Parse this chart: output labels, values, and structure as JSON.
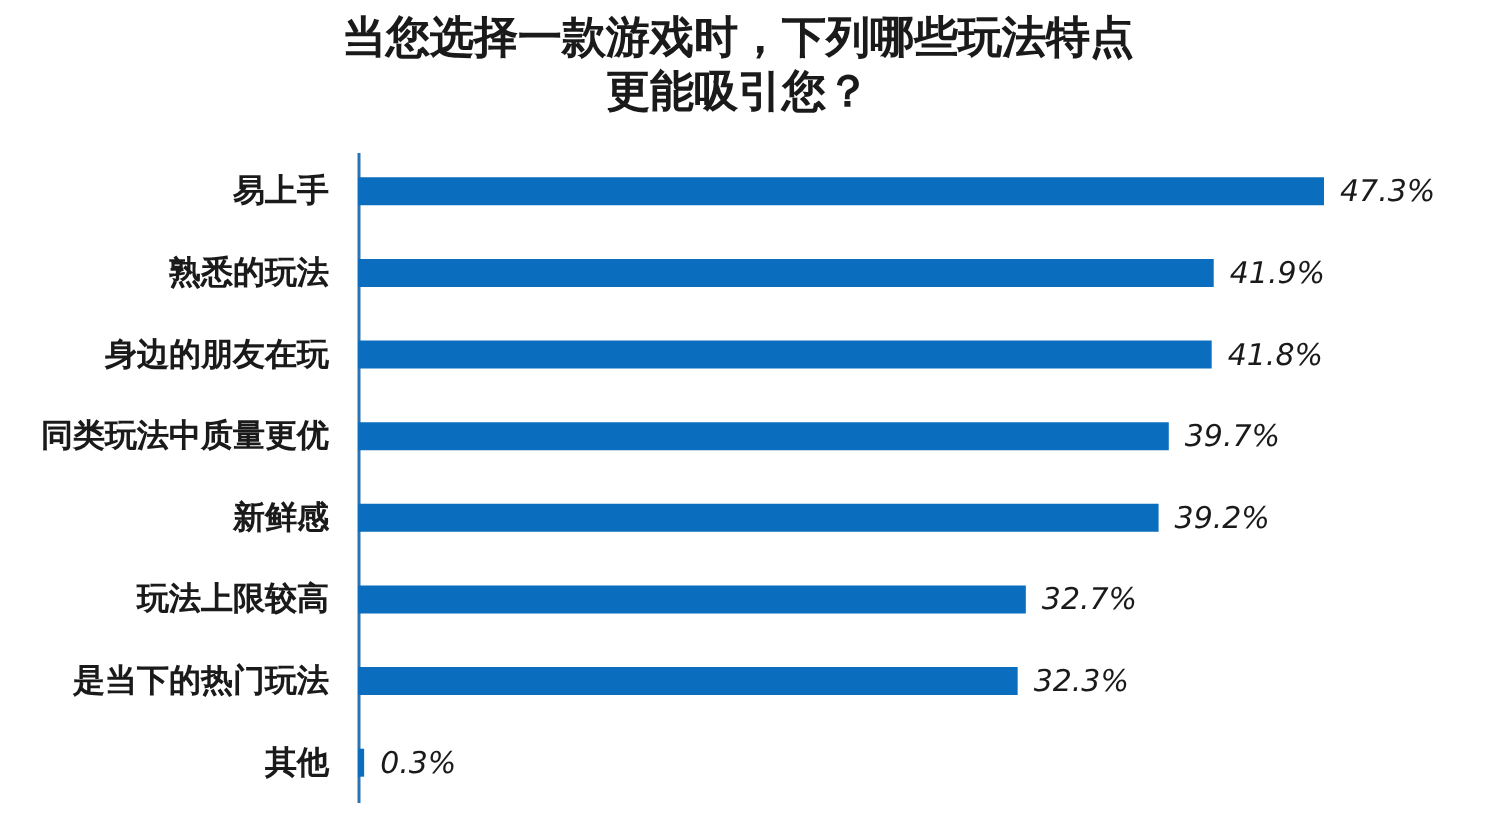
{
  "chart_data": {
    "type": "bar",
    "orientation": "horizontal",
    "title": "当您选择一款游戏时，下列哪些玩法特点更能吸引您？",
    "categories": [
      "易上手",
      "熟悉的玩法",
      "身边的朋友在玩",
      "同类玩法中质量更优",
      "新鲜感",
      "玩法上限较高",
      "是当下的热门玩法",
      "其他"
    ],
    "values": [
      47.3,
      41.9,
      41.8,
      39.7,
      39.2,
      32.7,
      32.3,
      0.3
    ],
    "value_labels": [
      "47.3%",
      "41.9%",
      "41.8%",
      "39.7%",
      "39.2%",
      "32.7%",
      "32.3%",
      "0.3%"
    ],
    "color": "#0a6dbd",
    "tick_labels": "y"
  }
}
